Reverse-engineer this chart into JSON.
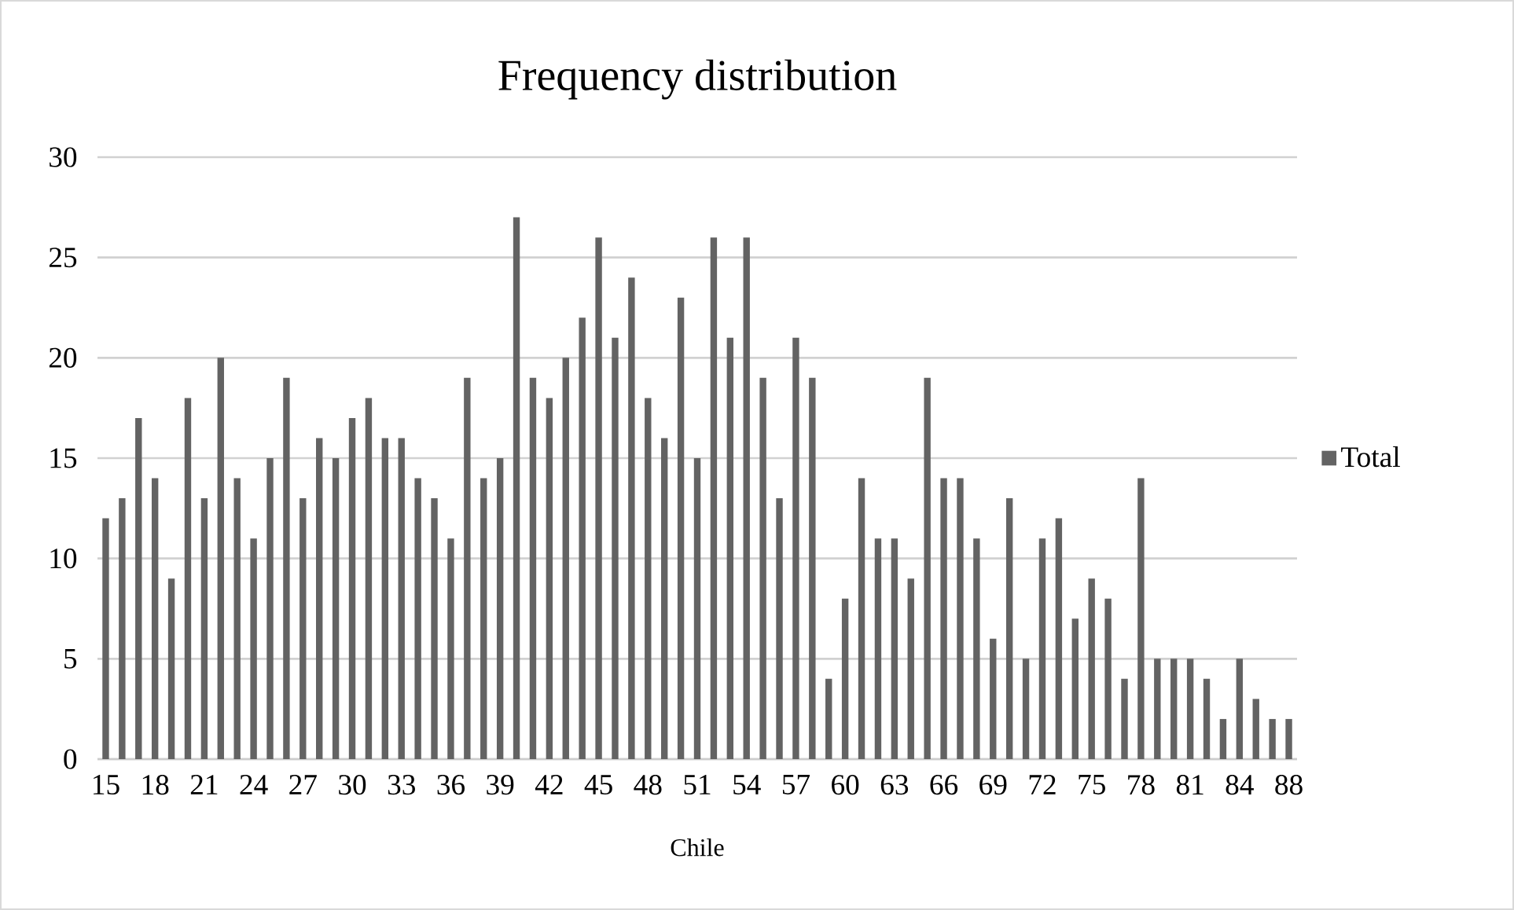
{
  "chart_data": {
    "type": "bar",
    "title": "Frequency distribution",
    "xlabel": "Chile",
    "categories": [
      "15",
      null,
      null,
      "18",
      null,
      null,
      "21",
      null,
      null,
      "24",
      null,
      null,
      "27",
      null,
      null,
      "30",
      null,
      null,
      "33",
      null,
      null,
      "36",
      null,
      null,
      "39",
      null,
      null,
      "42",
      null,
      null,
      "45",
      null,
      null,
      "48",
      null,
      null,
      "51",
      null,
      null,
      "54",
      null,
      null,
      "57",
      null,
      null,
      "60",
      null,
      null,
      "63",
      null,
      null,
      "66",
      null,
      null,
      "69",
      null,
      null,
      "72",
      null,
      null,
      "75",
      null,
      null,
      "78",
      null,
      null,
      "81",
      null,
      null,
      "84",
      null,
      null,
      "88"
    ],
    "series": [
      {
        "name": "Total",
        "color": "#636363",
        "values": [
          12,
          13,
          17,
          14,
          9,
          18,
          13,
          20,
          14,
          11,
          15,
          19,
          13,
          16,
          15,
          17,
          18,
          16,
          16,
          14,
          13,
          11,
          19,
          14,
          15,
          27,
          19,
          18,
          20,
          22,
          26,
          21,
          24,
          18,
          16,
          23,
          15,
          26,
          21,
          26,
          19,
          13,
          21,
          19,
          4,
          8,
          14,
          11,
          11,
          9,
          19,
          14,
          14,
          11,
          6,
          13,
          5,
          11,
          12,
          7,
          9,
          8,
          4,
          14,
          5,
          5,
          5,
          4,
          2,
          5,
          3,
          2,
          2
        ]
      }
    ],
    "ylim": [
      0,
      30
    ],
    "yticks": [
      0,
      5,
      10,
      15,
      20,
      25,
      30
    ],
    "grid": "y",
    "legend": "right"
  }
}
